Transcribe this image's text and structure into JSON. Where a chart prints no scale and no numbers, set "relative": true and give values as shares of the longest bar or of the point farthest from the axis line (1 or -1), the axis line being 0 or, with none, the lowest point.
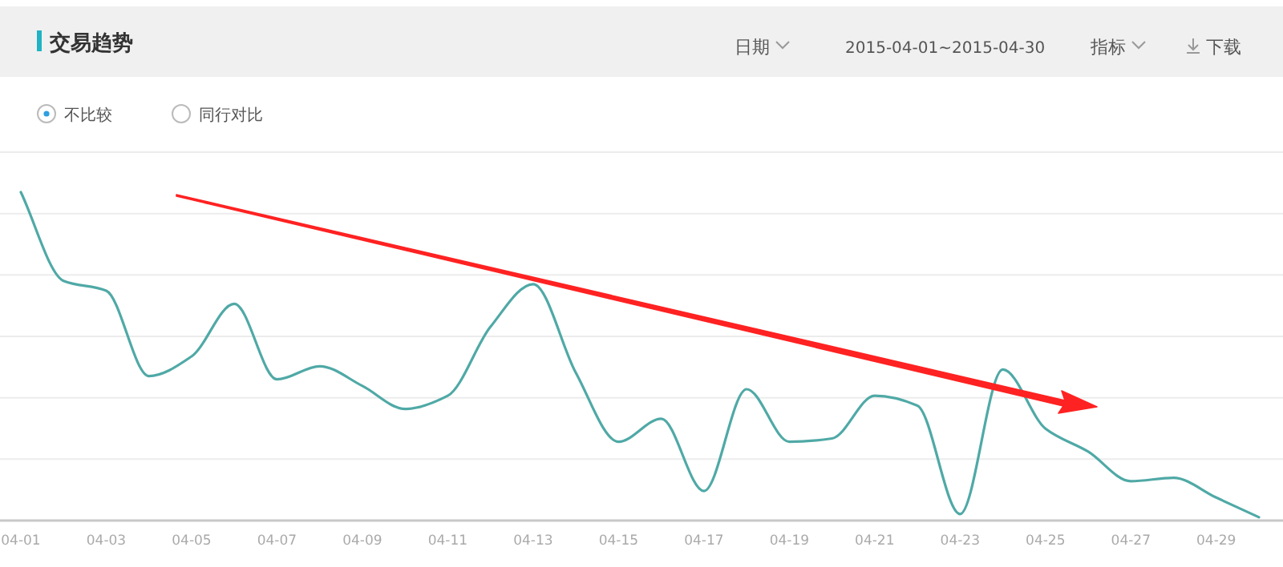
{
  "chart_data": {
    "type": "line",
    "title": "交易趋势",
    "relative": true,
    "grid": "y",
    "marker": "none",
    "line_style": "solid",
    "annotations": [
      "日期",
      "2015-04-01~2015-04-30",
      "指标",
      "下载",
      "不比较",
      "同行对比"
    ],
    "categories": [
      "04-01",
      null,
      "04-03",
      null,
      "04-05",
      null,
      "04-07",
      null,
      "04-09",
      null,
      "04-11",
      null,
      "04-13",
      null,
      "04-15",
      null,
      "04-17",
      null,
      "04-19",
      null,
      "04-21",
      null,
      "04-23",
      null,
      "04-25",
      null,
      "04-27",
      null,
      "04-29",
      null
    ],
    "series": [
      {
        "color": "#4fa9a6",
        "values": [
          1.0,
          0.73,
          0.7,
          0.44,
          0.5,
          0.66,
          0.43,
          0.47,
          0.41,
          0.34,
          0.38,
          0.59,
          0.72,
          0.45,
          0.24,
          0.31,
          0.09,
          0.4,
          0.24,
          0.25,
          0.38,
          0.35,
          0.02,
          0.46,
          0.28,
          0.21,
          0.12,
          0.13,
          0.07,
          0.01
        ]
      }
    ]
  }
}
